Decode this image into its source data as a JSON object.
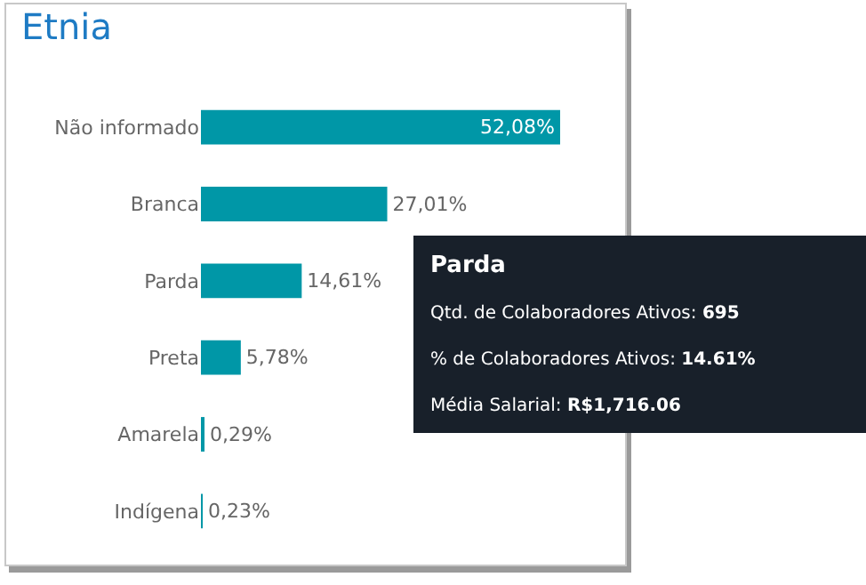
{
  "chart_data": {
    "type": "bar",
    "orientation": "horizontal",
    "title": "Etnia",
    "categories": [
      "Não informado",
      "Branca",
      "Parda",
      "Preta",
      "Amarela",
      "Indígena"
    ],
    "values": [
      52.08,
      27.01,
      14.61,
      5.78,
      0.29,
      0.23
    ],
    "value_labels": [
      "52,08%",
      "27,01%",
      "14,61%",
      "5,78%",
      "0,29%",
      "0,23%"
    ],
    "color": "#0097a7",
    "legend": false,
    "annotations": [
      "Parda",
      "Qtd. de Colaboradores Ativos: 695",
      "% de Colaboradores Ativos: 14.61%",
      "Média Salarial: R$1,716.06"
    ]
  }
}
